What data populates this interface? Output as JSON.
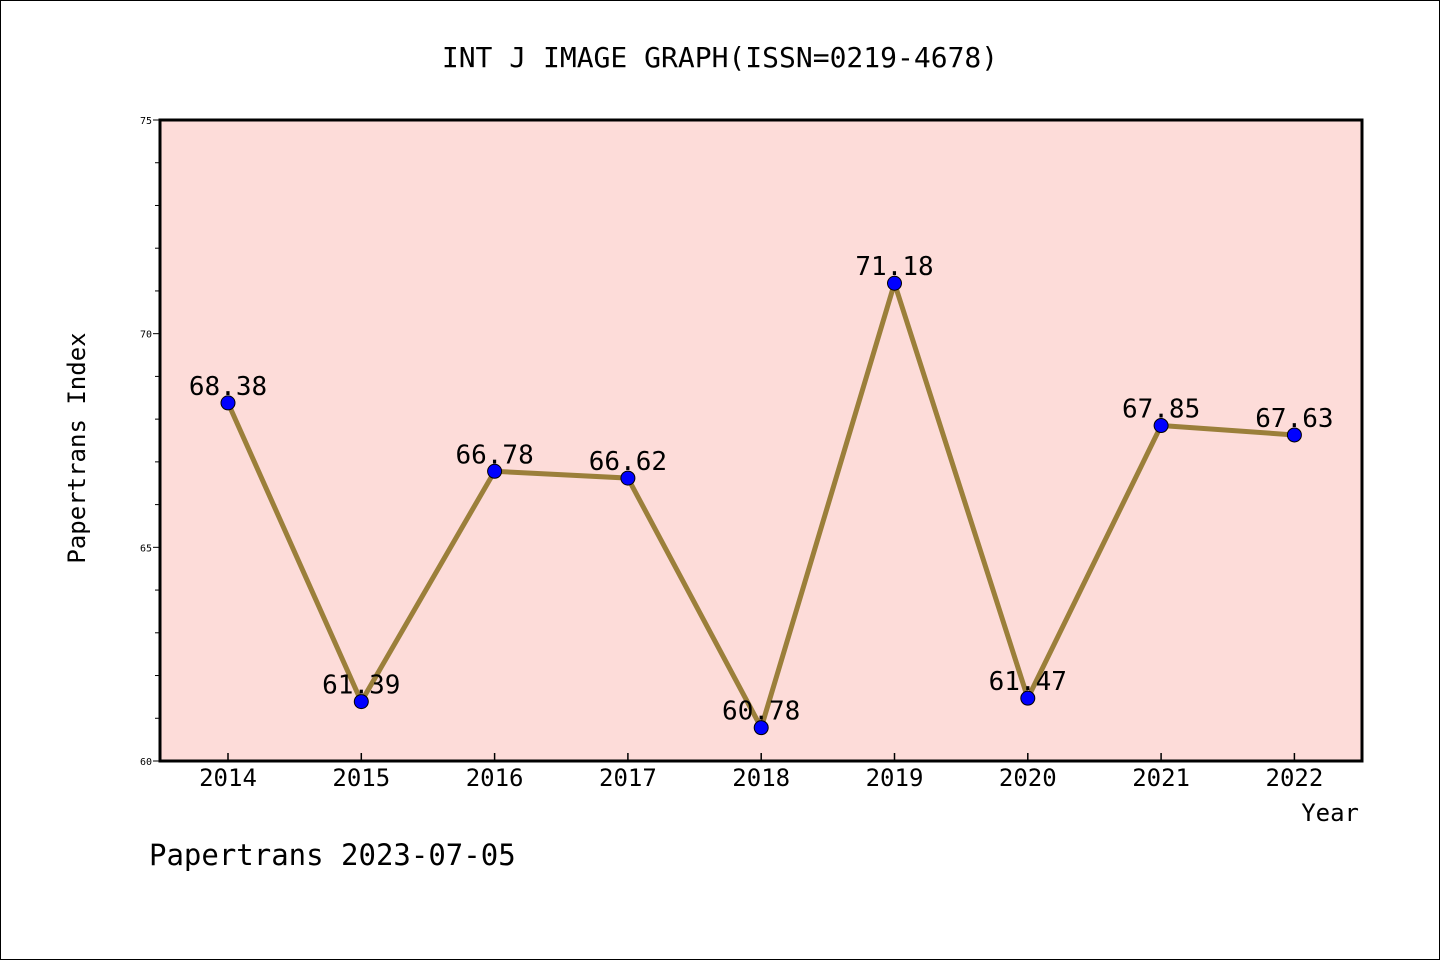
{
  "chart_data": {
    "type": "line",
    "title": "INT J IMAGE GRAPH(ISSN=0219-4678)",
    "xlabel": "Year",
    "ylabel": "Papertrans Index",
    "categories": [
      "2014",
      "2015",
      "2016",
      "2017",
      "2018",
      "2019",
      "2020",
      "2021",
      "2022"
    ],
    "series": [
      {
        "values": [
          68.38,
          61.39,
          66.78,
          66.62,
          60.78,
          71.18,
          61.47,
          67.85,
          67.63
        ],
        "labels": [
          "68.38",
          "61.39",
          "66.78",
          "66.62",
          "60.78",
          "71.18",
          "61.47",
          "67.85",
          "67.63"
        ]
      }
    ],
    "ylim": [
      60,
      75
    ],
    "yticks": [
      "60",
      "65",
      "70",
      "75"
    ],
    "grid": false,
    "colors": {
      "plot_background": "#fddcd9",
      "line": "#9b7f3a",
      "marker": "#0000ff"
    }
  },
  "footer": "Papertrans 2023-07-05"
}
